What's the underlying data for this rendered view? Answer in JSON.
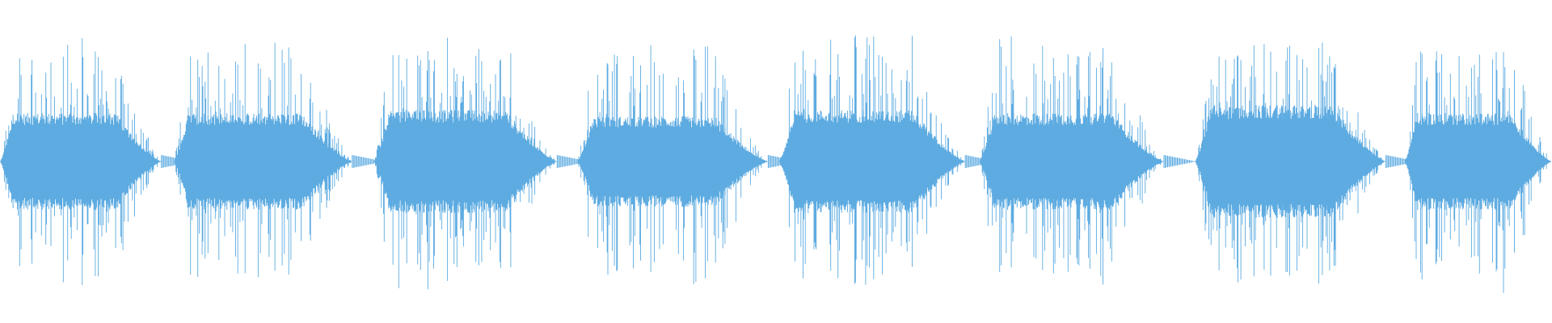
{
  "chart_data": {
    "type": "waveform",
    "title": "",
    "xlabel": "",
    "ylabel": "",
    "axes_visible": false,
    "grid": false,
    "legend": "none",
    "color": "#5DABE1",
    "amplitude_range": [
      -1,
      1
    ],
    "duration_fraction_range": [
      0,
      1
    ],
    "bursts": [
      {
        "start": 0.0,
        "end": 0.104,
        "peak": 0.8,
        "core": 0.3
      },
      {
        "start": 0.112,
        "end": 0.227,
        "peak": 0.83,
        "core": 0.3
      },
      {
        "start": 0.241,
        "end": 0.359,
        "peak": 0.83,
        "core": 0.32
      },
      {
        "start": 0.372,
        "end": 0.495,
        "peak": 0.8,
        "core": 0.28
      },
      {
        "start": 0.502,
        "end": 0.622,
        "peak": 0.83,
        "core": 0.32
      },
      {
        "start": 0.631,
        "end": 0.75,
        "peak": 0.83,
        "core": 0.3
      },
      {
        "start": 0.77,
        "end": 0.893,
        "peak": 0.8,
        "core": 0.35
      },
      {
        "start": 0.905,
        "end": 1.0,
        "peak": 0.83,
        "core": 0.3
      }
    ]
  }
}
